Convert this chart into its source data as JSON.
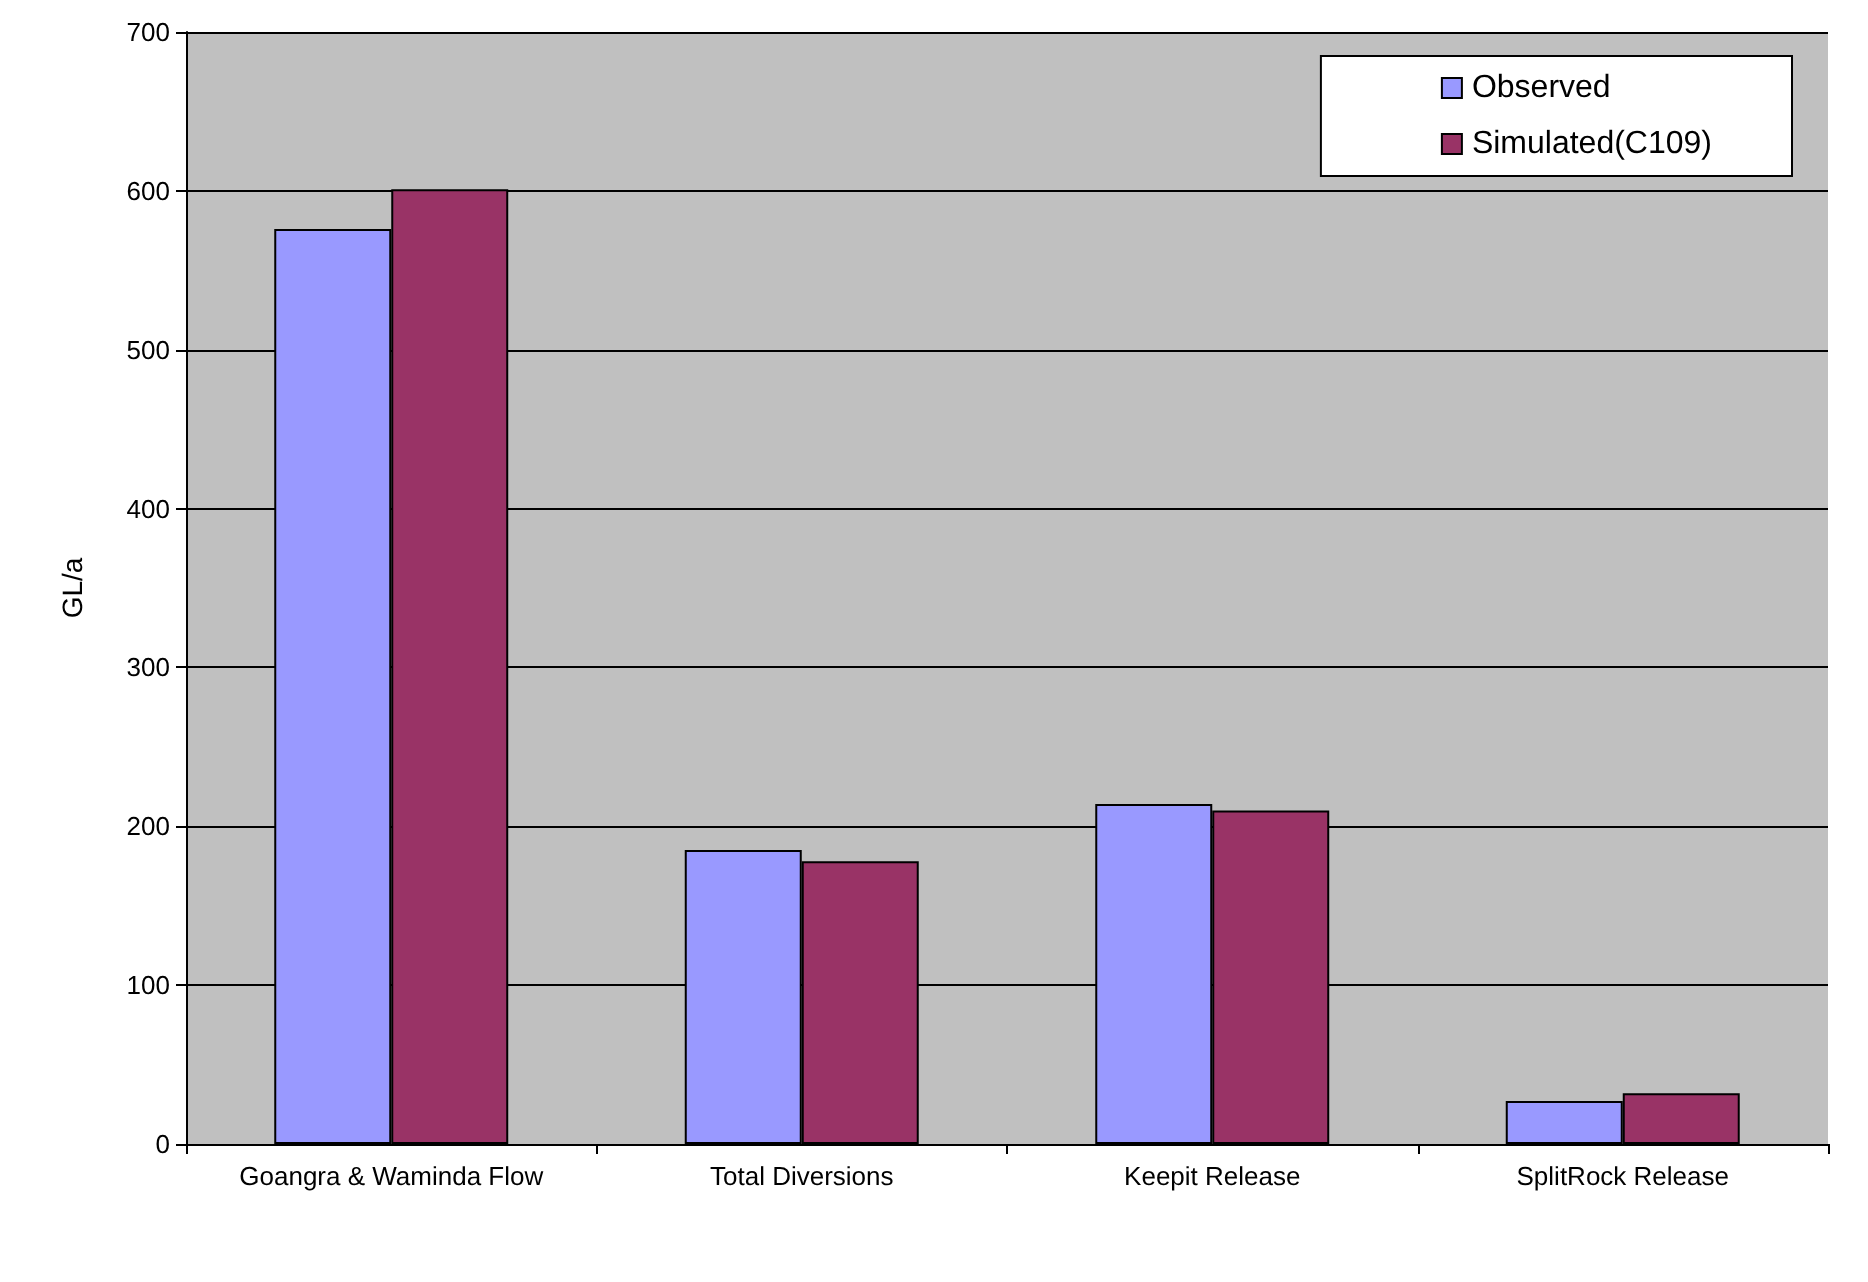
{
  "chart_data": {
    "type": "bar",
    "ylabel": "GL/a",
    "categories": [
      "Goangra & Waminda Flow",
      "Total Diversions",
      "Keepit Release",
      "SplitRock Release"
    ],
    "series": [
      {
        "name": "Observed",
        "color": "#9999ff",
        "values": [
          576,
          185,
          214,
          27
        ]
      },
      {
        "name": "Simulated(C109)",
        "color": "#993366",
        "values": [
          601,
          178,
          210,
          32
        ]
      }
    ],
    "ylim": [
      0,
      700
    ],
    "yticks": [
      0,
      100,
      200,
      300,
      400,
      500,
      600,
      700
    ],
    "grid": "y",
    "legend": "top right"
  }
}
